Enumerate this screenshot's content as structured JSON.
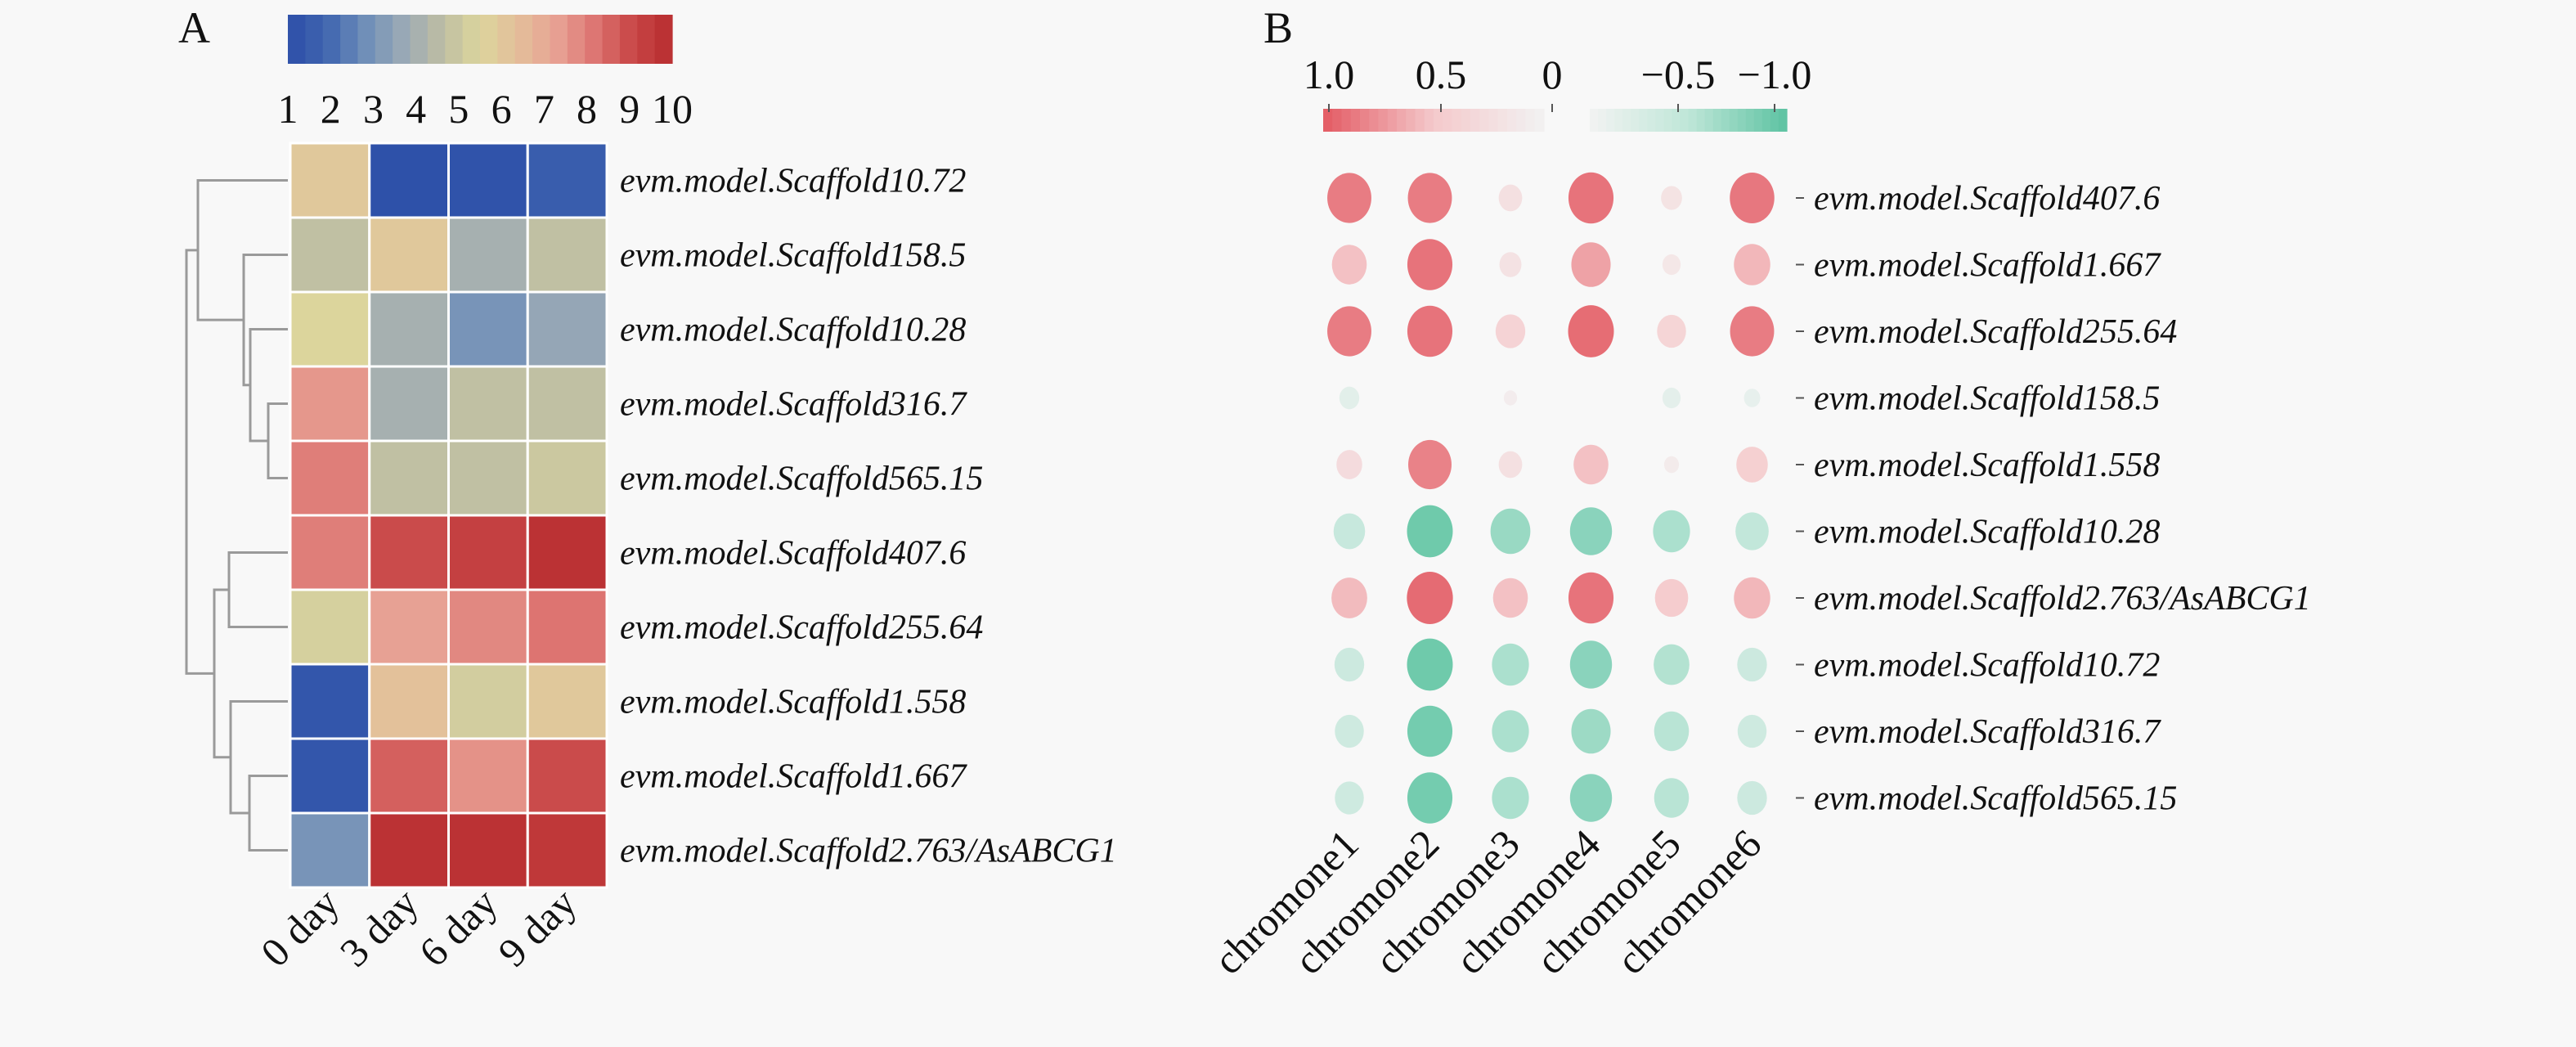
{
  "chart_data": [
    {
      "panel_label": "A",
      "type": "heatmap",
      "colorbar": {
        "ticks": [
          "1",
          "2",
          "3",
          "4",
          "5",
          "6",
          "7",
          "8",
          "9",
          "10"
        ],
        "range": [
          1,
          10
        ],
        "colors": [
          "#2c4ea8",
          "#4065b0",
          "#6e8eb8",
          "#9aa9b6",
          "#bdbda4",
          "#dcd59c",
          "#e4be9a",
          "#e7a194",
          "#dd7471",
          "#c84646",
          "#b72c2f"
        ]
      },
      "rows": [
        "evm.model.Scaffold10.72",
        "evm.model.Scaffold158.5",
        "evm.model.Scaffold10.28",
        "evm.model.Scaffold316.7",
        "evm.model.Scaffold565.15",
        "evm.model.Scaffold407.6",
        "evm.model.Scaffold255.64",
        "evm.model.Scaffold1.558",
        "evm.model.Scaffold1.667",
        "evm.model.Scaffold2.763/AsABCG1"
      ],
      "columns": [
        "0 day",
        "3 day",
        "6 day",
        "9 day"
      ],
      "values": [
        [
          6.0,
          1.1,
          1.2,
          1.6
        ],
        [
          4.7,
          6.0,
          4.0,
          4.7
        ],
        [
          5.5,
          4.0,
          3.0,
          3.6
        ],
        [
          7.5,
          4.0,
          4.7,
          4.7
        ],
        [
          8.0,
          4.7,
          4.7,
          5.0
        ],
        [
          8.0,
          9.0,
          9.3,
          9.8
        ],
        [
          5.3,
          7.3,
          7.8,
          8.2
        ],
        [
          1.3,
          6.3,
          5.2,
          6.0
        ],
        [
          1.3,
          8.6,
          7.6,
          9.0
        ],
        [
          3.0,
          9.8,
          9.8,
          9.6
        ]
      ],
      "dendrogram": "rows"
    },
    {
      "panel_label": "B",
      "type": "scatter",
      "subtype": "correlation-bubble",
      "legend": {
        "ticks": [
          "1.0",
          "0.5",
          "0",
          "−0.5",
          "−1.0"
        ],
        "range": [
          1.0,
          -1.0
        ],
        "positive_color": "#e35a63",
        "negative_color": "#5dc3a2",
        "placement": "top"
      },
      "rows": [
        "evm.model.Scaffold407.6",
        "evm.model.Scaffold1.667",
        "evm.model.Scaffold255.64",
        "evm.model.Scaffold158.5",
        "evm.model.Scaffold1.558",
        "evm.model.Scaffold10.28",
        "evm.model.Scaffold2.763/AsABCG1",
        "evm.model.Scaffold10.72",
        "evm.model.Scaffold316.7",
        "evm.model.Scaffold565.15"
      ],
      "columns": [
        "chromone1",
        "chromone2",
        "chromone3",
        "chromone4",
        "chromone5",
        "chromone6"
      ],
      "values": [
        [
          0.88,
          0.88,
          0.25,
          0.92,
          0.2,
          0.9
        ],
        [
          0.55,
          0.92,
          0.22,
          0.7,
          0.15,
          0.6
        ],
        [
          0.88,
          0.92,
          0.4,
          0.95,
          0.38,
          0.88
        ],
        [
          -0.18,
          0.0,
          0.08,
          0.0,
          -0.15,
          -0.12
        ],
        [
          0.3,
          0.85,
          0.25,
          0.55,
          0.1,
          0.45
        ],
        [
          -0.45,
          -0.95,
          -0.72,
          -0.8,
          -0.62,
          -0.5
        ],
        [
          0.58,
          0.96,
          0.55,
          0.92,
          0.5,
          0.6
        ],
        [
          -0.4,
          -0.95,
          -0.62,
          -0.8,
          -0.58,
          -0.4
        ],
        [
          -0.38,
          -0.92,
          -0.62,
          -0.7,
          -0.55,
          -0.38
        ],
        [
          -0.38,
          -0.92,
          -0.62,
          -0.8,
          -0.55,
          -0.4
        ]
      ]
    }
  ]
}
